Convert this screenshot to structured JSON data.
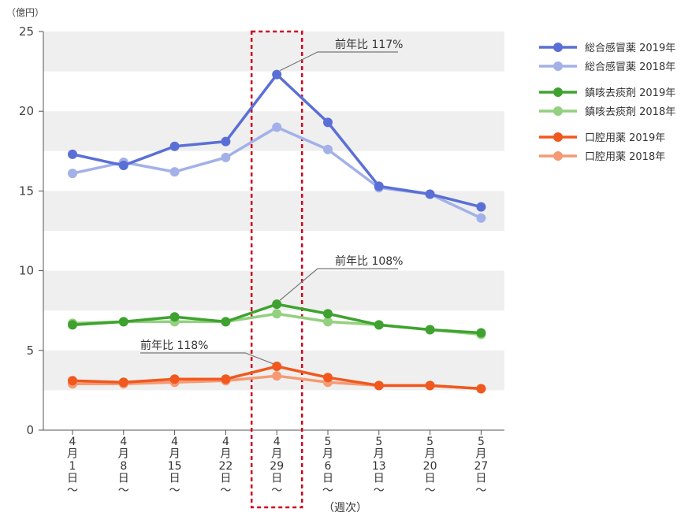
{
  "chart_data": {
    "type": "line",
    "ylabel": "（億円）",
    "xlabel": "（週次）",
    "ylim": [
      0,
      25
    ],
    "yticks": [
      "0",
      "5",
      "10",
      "15",
      "20",
      "25"
    ],
    "ytick_values": [
      0,
      5,
      10,
      15,
      20,
      25
    ],
    "categories": [
      [
        "4",
        "月",
        "1",
        "日",
        "〜"
      ],
      [
        "4",
        "月",
        "8",
        "日",
        "〜"
      ],
      [
        "4",
        "月",
        "15",
        "日",
        "〜"
      ],
      [
        "4",
        "月",
        "22",
        "日",
        "〜"
      ],
      [
        "4",
        "月",
        "29",
        "日",
        "〜"
      ],
      [
        "5",
        "月",
        "6",
        "日",
        "〜"
      ],
      [
        "5",
        "月",
        "13",
        "日",
        "〜"
      ],
      [
        "5",
        "月",
        "20",
        "日",
        "〜"
      ],
      [
        "5",
        "月",
        "27",
        "日",
        "〜"
      ]
    ],
    "highlight_index": 4,
    "series": [
      {
        "name": "総合感冒薬 2019年",
        "color": "#5a6fd6",
        "values": [
          17.3,
          16.6,
          17.8,
          18.1,
          22.3,
          19.3,
          15.3,
          14.8,
          14.0
        ]
      },
      {
        "name": "総合感冒薬 2018年",
        "color": "#a3b1e8",
        "values": [
          16.1,
          16.8,
          16.2,
          17.1,
          19.0,
          17.6,
          15.2,
          14.8,
          13.3
        ]
      },
      {
        "name": "鎮咳去痰剤 2019年",
        "color": "#3fa230",
        "values": [
          6.6,
          6.8,
          7.1,
          6.8,
          7.9,
          7.3,
          6.6,
          6.3,
          6.1
        ]
      },
      {
        "name": "鎮咳去痰剤 2018年",
        "color": "#93d07f",
        "values": [
          6.7,
          6.8,
          6.8,
          6.8,
          7.3,
          6.8,
          6.6,
          6.3,
          6.0
        ]
      },
      {
        "name": "口腔用薬 2019年",
        "color": "#f0581e",
        "values": [
          3.1,
          3.0,
          3.2,
          3.2,
          4.0,
          3.3,
          2.8,
          2.8,
          2.6
        ]
      },
      {
        "name": "口腔用薬 2018年",
        "color": "#f59a74",
        "values": [
          2.9,
          2.9,
          3.0,
          3.1,
          3.4,
          3.0,
          2.8,
          2.8,
          2.6
        ]
      }
    ],
    "annotations": [
      {
        "text": "前年比 117%",
        "series": 0,
        "index": 4
      },
      {
        "text": "前年比 108%",
        "series": 2,
        "index": 4
      },
      {
        "text": "前年比 118%",
        "series": 4,
        "index": 4
      }
    ],
    "band_color": "#efefef",
    "highlight_color": "#d0021b",
    "legend_position": "right"
  }
}
